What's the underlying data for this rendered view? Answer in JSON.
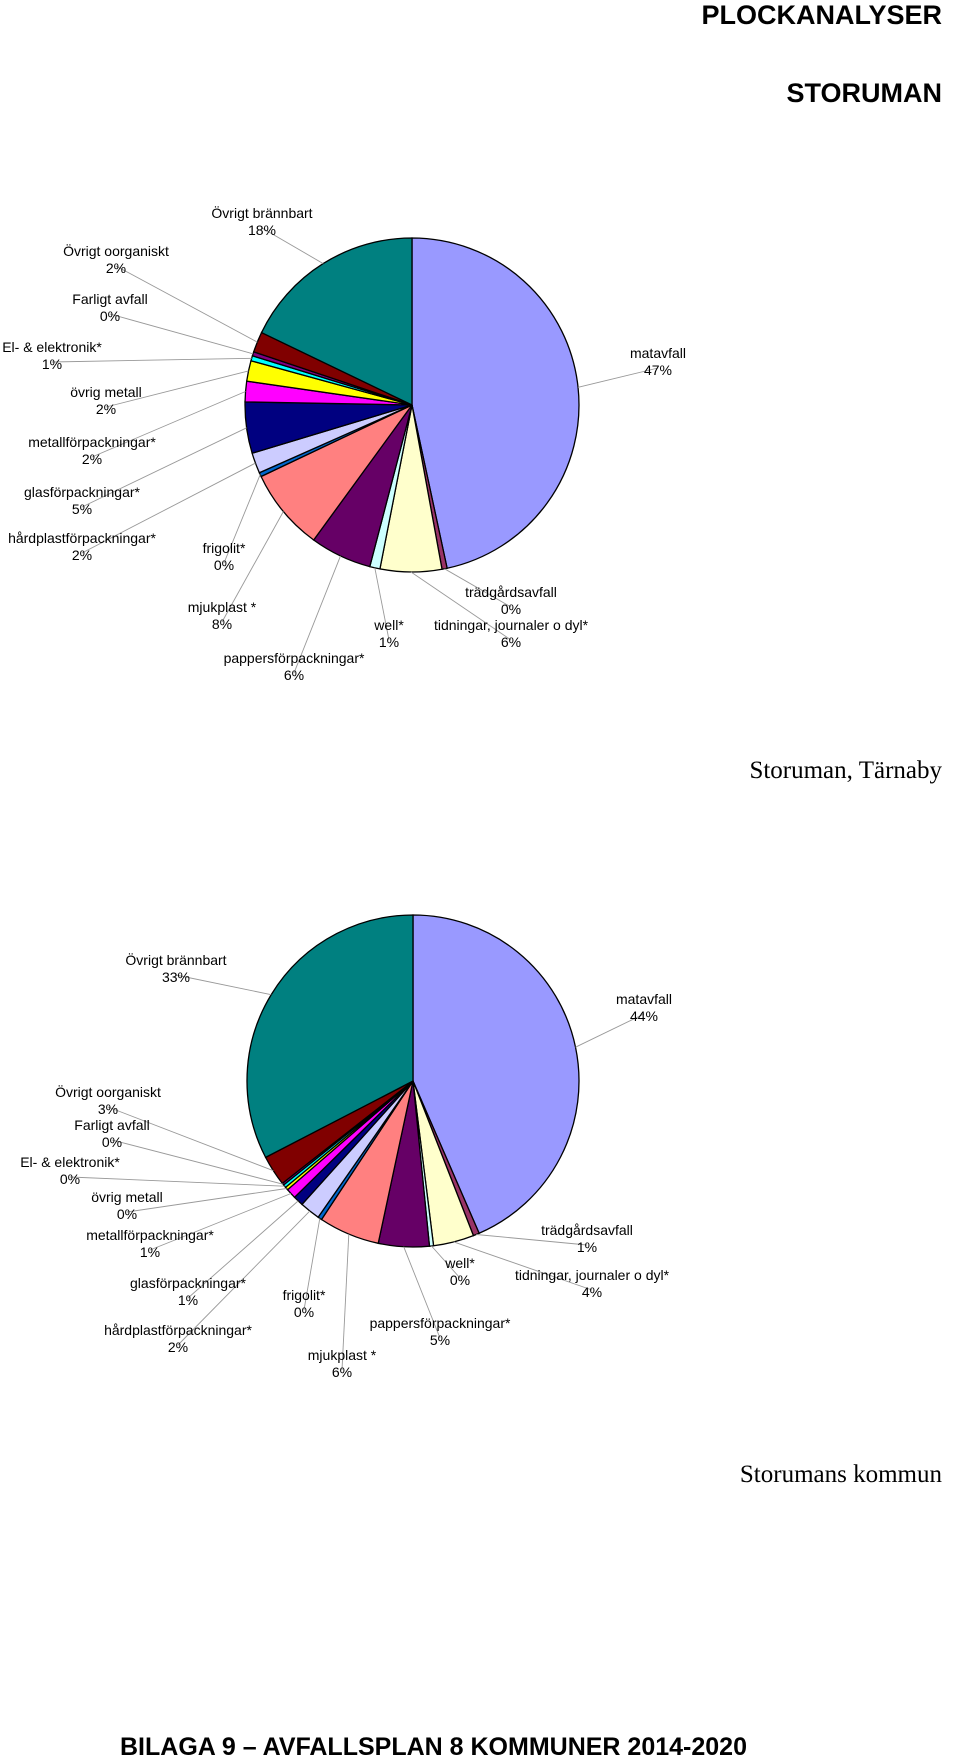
{
  "header": {
    "title": "PLOCKANALYSER",
    "subtitle": "STORUMAN"
  },
  "footer": {
    "text": "BILAGA 9 – AVFALLSPLAN 8 KOMMUNER 2014-2020"
  },
  "chart_data": [
    {
      "type": "pie",
      "caption": "Storuman, Tärnaby",
      "slices": [
        {
          "label": "matavfall",
          "value": 47,
          "display": "47%",
          "color": "#9999ff"
        },
        {
          "label": "trädgårdsavfall",
          "value": 0.5,
          "display": "0%",
          "color": "#993366"
        },
        {
          "label": "tidningar, journaler o dyl*",
          "value": 6,
          "display": "6%",
          "color": "#ffffcc"
        },
        {
          "label": "well*",
          "value": 1,
          "display": "1%",
          "color": "#ccffff"
        },
        {
          "label": "pappersförpackningar*",
          "value": 6,
          "display": "6%",
          "color": "#660066"
        },
        {
          "label": "mjukplast *",
          "value": 8,
          "display": "8%",
          "color": "#ff8080"
        },
        {
          "label": "frigolit*",
          "value": 0.4,
          "display": "0%",
          "color": "#0066cc"
        },
        {
          "label": "hårdplastförpackningar*",
          "value": 2,
          "display": "2%",
          "color": "#ccccff"
        },
        {
          "label": "glasförpackningar*",
          "value": 5,
          "display": "5%",
          "color": "#000080"
        },
        {
          "label": "metallförpackningar*",
          "value": 2,
          "display": "2%",
          "color": "#ff00ff"
        },
        {
          "label": "övrig metall",
          "value": 2,
          "display": "2%",
          "color": "#ffff00"
        },
        {
          "label": "El- & elektronik*",
          "value": 0.5,
          "display": "1%",
          "color": "#00ffff"
        },
        {
          "label": "Farligt avfall",
          "value": 0.4,
          "display": "0%",
          "color": "#800080"
        },
        {
          "label": "Övrigt oorganiskt",
          "value": 2,
          "display": "2%",
          "color": "#800000"
        },
        {
          "label": "Övrigt brännbart",
          "value": 18,
          "display": "18%",
          "color": "#008080"
        }
      ]
    },
    {
      "type": "pie",
      "caption": "Storumans kommun",
      "slices": [
        {
          "label": "matavfall",
          "value": 44,
          "display": "44%",
          "color": "#9999ff"
        },
        {
          "label": "trädgårdsavfall",
          "value": 0.6,
          "display": "1%",
          "color": "#993366"
        },
        {
          "label": "tidningar, journaler o dyl*",
          "value": 4,
          "display": "4%",
          "color": "#ffffcc"
        },
        {
          "label": "well*",
          "value": 0.4,
          "display": "0%",
          "color": "#ccffff"
        },
        {
          "label": "pappersförpackningar*",
          "value": 5,
          "display": "5%",
          "color": "#660066"
        },
        {
          "label": "mjukplast *",
          "value": 6,
          "display": "6%",
          "color": "#ff8080"
        },
        {
          "label": "frigolit*",
          "value": 0.4,
          "display": "0%",
          "color": "#0066cc"
        },
        {
          "label": "hårdplastförpackningar*",
          "value": 2,
          "display": "2%",
          "color": "#ccccff"
        },
        {
          "label": "glasförpackningar*",
          "value": 1,
          "display": "1%",
          "color": "#000080"
        },
        {
          "label": "metallförpackningar*",
          "value": 1,
          "display": "1%",
          "color": "#ff00ff"
        },
        {
          "label": "övrig metall",
          "value": 0.3,
          "display": "0%",
          "color": "#ffff00"
        },
        {
          "label": "El- & elektronik*",
          "value": 0.3,
          "display": "0%",
          "color": "#00ffff"
        },
        {
          "label": "Farligt avfall",
          "value": 0.2,
          "display": "0%",
          "color": "#800080"
        },
        {
          "label": "Övrigt oorganiskt",
          "value": 3,
          "display": "3%",
          "color": "#800000"
        },
        {
          "label": "Övrigt brännbart",
          "value": 33,
          "display": "33%",
          "color": "#008080"
        }
      ]
    }
  ]
}
